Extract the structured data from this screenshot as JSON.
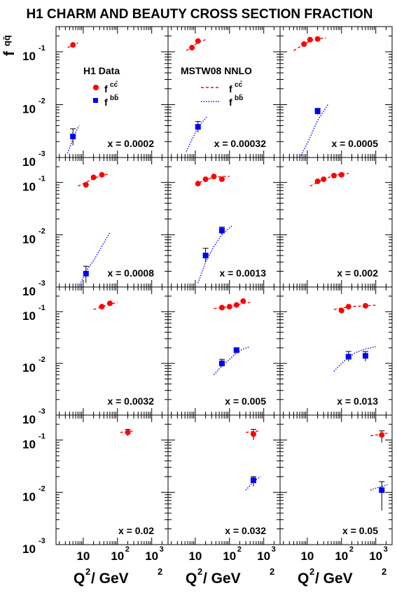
{
  "title": "H1 CHARM AND BEAUTY CROSS SECTION FRACTION",
  "legend": {
    "data_title": "H1 Data",
    "model_title": "MSTW08 NNLO",
    "data_cc": "f",
    "data_cc_sup": "cc̄",
    "data_bb": "f",
    "data_bb_sup": "bb̄",
    "model_cc": "f",
    "model_cc_sup": "cc̄",
    "model_bb": "f",
    "model_bb_sup": "bb̄"
  },
  "ylabel": "f",
  "ylabel_sup": "qq̄",
  "xlabel": "Q² / GeV²",
  "xlabel_main": "Q",
  "xlabel_sup1": "2",
  "xlabel_mid": " / GeV",
  "xlabel_sup2": "2",
  "colors": {
    "charm": "#ff0000",
    "beauty": "#0000ff",
    "axes": "#000000"
  },
  "icons": {
    "charm_marker": "red-circle-marker",
    "beauty_marker": "blue-square-marker"
  },
  "chart_data": {
    "type": "scatter",
    "layout": "4x3 grid of panels sharing axes",
    "x_scale": "log",
    "y_scale": "log",
    "xlim": [
      1.6,
      3000
    ],
    "ylim": [
      0.001,
      0.3
    ],
    "x_ticks": [
      {
        "base": "10",
        "exp": ""
      },
      {
        "base": "10",
        "exp": "2"
      },
      {
        "base": "10",
        "exp": "3"
      }
    ],
    "y_ticks": [
      {
        "base": "10",
        "exp": "-1"
      },
      {
        "base": "10",
        "exp": "-2"
      },
      {
        "base": "10",
        "exp": "-3"
      }
    ],
    "panels": [
      {
        "label": "x = 0.0002",
        "charm": [
          {
            "x": 5,
            "y": 0.135
          }
        ],
        "beauty": [
          {
            "x": 5,
            "y": 0.0025,
            "err": [
              0.0017,
              0.0035
            ]
          }
        ],
        "model_charm": [
          [
            3.5,
            0.12
          ],
          [
            4.5,
            0.13
          ],
          [
            6,
            0.14
          ],
          [
            7,
            0.148
          ]
        ],
        "model_beauty": [
          [
            3.5,
            0.0012
          ],
          [
            4.5,
            0.0019
          ],
          [
            6,
            0.003
          ],
          [
            7.5,
            0.004
          ]
        ]
      },
      {
        "label": "x = 0.00032",
        "charm": [
          {
            "x": 8,
            "y": 0.12
          },
          {
            "x": 12,
            "y": 0.16
          }
        ],
        "beauty": [
          {
            "x": 12,
            "y": 0.0038,
            "err": [
              0.003,
              0.0048
            ]
          }
        ],
        "model_charm": [
          [
            5.5,
            0.105
          ],
          [
            8,
            0.125
          ],
          [
            12,
            0.15
          ],
          [
            20,
            0.17
          ]
        ],
        "model_beauty": [
          [
            5.5,
            0.0013
          ],
          [
            8,
            0.0022
          ],
          [
            12,
            0.0037
          ],
          [
            22,
            0.006
          ]
        ]
      },
      {
        "label": "x = 0.0005",
        "charm": [
          {
            "x": 8,
            "y": 0.14
          },
          {
            "x": 12,
            "y": 0.17
          },
          {
            "x": 20,
            "y": 0.175
          }
        ],
        "beauty": [
          {
            "x": 20,
            "y": 0.0075,
            "err": [
              0.0065,
              0.0085
            ]
          }
        ],
        "model_charm": [
          [
            4,
            0.105
          ],
          [
            8,
            0.14
          ],
          [
            12,
            0.16
          ],
          [
            20,
            0.175
          ],
          [
            35,
            0.185
          ]
        ],
        "model_beauty": [
          [
            6,
            0.001
          ],
          [
            8,
            0.0014
          ],
          [
            12,
            0.0024
          ],
          [
            20,
            0.005
          ],
          [
            40,
            0.01
          ]
        ]
      },
      {
        "label": "x = 0.0008",
        "charm": [
          {
            "x": 12,
            "y": 0.09
          },
          {
            "x": 20,
            "y": 0.125
          },
          {
            "x": 35,
            "y": 0.14
          }
        ],
        "beauty": [
          {
            "x": 12,
            "y": 0.0018,
            "err": [
              0.0012,
              0.0025
            ]
          }
        ],
        "model_charm": [
          [
            7,
            0.085
          ],
          [
            12,
            0.1
          ],
          [
            20,
            0.12
          ],
          [
            35,
            0.135
          ],
          [
            55,
            0.145
          ]
        ],
        "model_beauty": [
          [
            8,
            0.0011
          ],
          [
            12,
            0.002
          ],
          [
            20,
            0.0032
          ],
          [
            35,
            0.006
          ],
          [
            60,
            0.011
          ]
        ]
      },
      {
        "label": "x = 0.0013",
        "charm": [
          {
            "x": 12,
            "y": 0.095
          },
          {
            "x": 20,
            "y": 0.115
          },
          {
            "x": 35,
            "y": 0.13
          },
          {
            "x": 60,
            "y": 0.115
          }
        ],
        "beauty": [
          {
            "x": 20,
            "y": 0.004,
            "err": [
              0.003,
              0.0055
            ]
          },
          {
            "x": 60,
            "y": 0.012,
            "err": [
              0.01,
              0.014
            ]
          }
        ],
        "model_charm": [
          [
            10,
            0.09
          ],
          [
            20,
            0.115
          ],
          [
            35,
            0.125
          ],
          [
            60,
            0.13
          ],
          [
            100,
            0.13
          ]
        ],
        "model_beauty": [
          [
            12,
            0.0012
          ],
          [
            20,
            0.003
          ],
          [
            35,
            0.006
          ],
          [
            60,
            0.01
          ],
          [
            120,
            0.015
          ]
        ]
      },
      {
        "label": "x = 0.002",
        "charm": [
          {
            "x": 20,
            "y": 0.105
          },
          {
            "x": 30,
            "y": 0.115
          },
          {
            "x": 60,
            "y": 0.135
          },
          {
            "x": 100,
            "y": 0.14
          }
        ],
        "beauty": [],
        "model_charm": [
          [
            12,
            0.085
          ],
          [
            20,
            0.1
          ],
          [
            35,
            0.12
          ],
          [
            60,
            0.135
          ],
          [
            100,
            0.145
          ],
          [
            160,
            0.15
          ]
        ],
        "model_beauty": []
      },
      {
        "label": "x = 0.0032",
        "charm": [
          {
            "x": 35,
            "y": 0.125
          },
          {
            "x": 60,
            "y": 0.145
          }
        ],
        "beauty": [],
        "model_charm": [
          [
            20,
            0.11
          ],
          [
            35,
            0.125
          ],
          [
            60,
            0.14
          ],
          [
            100,
            0.15
          ]
        ],
        "model_beauty": []
      },
      {
        "label": "x = 0.005",
        "charm": [
          {
            "x": 60,
            "y": 0.12
          },
          {
            "x": 100,
            "y": 0.125
          },
          {
            "x": 160,
            "y": 0.135
          },
          {
            "x": 250,
            "y": 0.16
          }
        ],
        "beauty": [
          {
            "x": 60,
            "y": 0.01,
            "err": [
              0.0085,
              0.012
            ]
          },
          {
            "x": 160,
            "y": 0.018,
            "err": [
              0.016,
              0.02
            ]
          }
        ],
        "model_charm": [
          [
            35,
            0.115
          ],
          [
            60,
            0.12
          ],
          [
            100,
            0.125
          ],
          [
            160,
            0.135
          ],
          [
            250,
            0.145
          ],
          [
            400,
            0.15
          ]
        ],
        "model_beauty": [
          [
            35,
            0.006
          ],
          [
            60,
            0.009
          ],
          [
            100,
            0.012
          ],
          [
            160,
            0.016
          ],
          [
            250,
            0.019
          ],
          [
            400,
            0.021
          ]
        ]
      },
      {
        "label": "x = 0.013",
        "charm": [
          {
            "x": 100,
            "y": 0.105
          },
          {
            "x": 160,
            "y": 0.125
          },
          {
            "x": 500,
            "y": 0.13
          }
        ],
        "beauty": [
          {
            "x": 160,
            "y": 0.0135,
            "err": [
              0.011,
              0.017
            ]
          },
          {
            "x": 500,
            "y": 0.014,
            "err": [
              0.011,
              0.017
            ]
          }
        ],
        "model_charm": [
          [
            60,
            0.11
          ],
          [
            100,
            0.118
          ],
          [
            160,
            0.123
          ],
          [
            250,
            0.127
          ],
          [
            500,
            0.13
          ],
          [
            1000,
            0.133
          ]
        ],
        "model_beauty": [
          [
            60,
            0.007
          ],
          [
            100,
            0.01
          ],
          [
            160,
            0.013
          ],
          [
            250,
            0.016
          ],
          [
            500,
            0.019
          ],
          [
            1000,
            0.021
          ]
        ]
      },
      {
        "label": "x = 0.02",
        "charm": [
          {
            "x": 200,
            "y": 0.14,
            "err": [
              0.12,
              0.16
            ]
          }
        ],
        "beauty": [],
        "model_charm": [
          [
            120,
            0.14
          ],
          [
            200,
            0.145
          ],
          [
            300,
            0.15
          ]
        ],
        "model_beauty": []
      },
      {
        "label": "x = 0.032",
        "charm": [
          {
            "x": 500,
            "y": 0.13,
            "err": [
              0.1,
              0.16
            ]
          }
        ],
        "beauty": [
          {
            "x": 500,
            "y": 0.017,
            "err": [
              0.013,
              0.02
            ]
          }
        ],
        "model_charm": [
          [
            300,
            0.14
          ],
          [
            500,
            0.145
          ],
          [
            800,
            0.15
          ]
        ],
        "model_beauty": [
          [
            300,
            0.011
          ],
          [
            500,
            0.016
          ],
          [
            800,
            0.02
          ]
        ]
      },
      {
        "label": "x = 0.05",
        "charm": [
          {
            "x": 1500,
            "y": 0.125,
            "err": [
              0.09,
              0.15
            ]
          }
        ],
        "beauty": [
          {
            "x": 1500,
            "y": 0.011,
            "err": [
              0.0045,
              0.016
            ]
          }
        ],
        "model_charm": [
          [
            700,
            0.12
          ],
          [
            1000,
            0.125
          ],
          [
            1500,
            0.13
          ],
          [
            2200,
            0.135
          ]
        ],
        "model_beauty": [
          [
            700,
            0.011
          ],
          [
            1000,
            0.012
          ],
          [
            1500,
            0.013
          ],
          [
            2200,
            0.014
          ]
        ]
      }
    ]
  }
}
